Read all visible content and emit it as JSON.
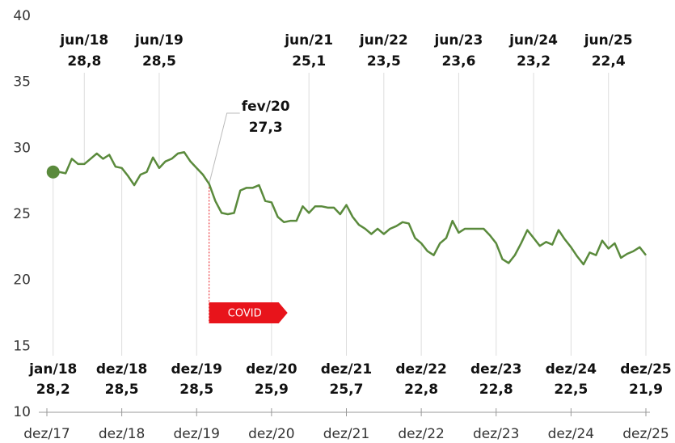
{
  "chart_data": {
    "type": "line",
    "x": [
      1,
      2,
      3,
      4,
      5,
      6,
      7,
      8,
      9,
      10,
      11,
      12,
      13,
      14,
      15,
      16,
      17,
      18,
      19,
      20,
      21,
      22,
      23,
      24,
      25,
      26,
      27,
      28,
      29,
      30,
      31,
      32,
      33,
      34,
      35,
      36,
      37,
      38,
      39,
      40,
      41,
      42,
      43,
      44,
      45,
      46,
      47,
      48,
      49,
      50,
      51,
      52,
      53,
      54,
      55,
      56,
      57,
      58,
      59,
      60,
      61,
      62,
      63,
      64,
      65,
      66,
      67,
      68,
      69,
      70,
      71,
      72,
      73,
      74,
      75,
      76,
      77,
      78,
      79,
      80,
      81,
      82,
      83,
      84,
      85,
      86,
      87,
      88,
      89,
      90,
      91,
      92,
      93,
      94,
      95,
      96
    ],
    "series": [
      {
        "color": "#5a8a3c",
        "values": [
          28.2,
          28.2,
          28.1,
          29.2,
          28.8,
          28.8,
          29.2,
          29.6,
          29.2,
          29.5,
          28.6,
          28.5,
          27.9,
          27.2,
          28.0,
          28.2,
          29.3,
          28.5,
          29.0,
          29.2,
          29.6,
          29.7,
          29.0,
          28.5,
          28.0,
          27.3,
          26.0,
          25.1,
          25.0,
          25.1,
          26.8,
          27.0,
          27.0,
          27.2,
          26.0,
          25.9,
          24.8,
          24.4,
          24.5,
          24.5,
          25.6,
          25.1,
          25.6,
          25.6,
          25.5,
          25.5,
          25.0,
          25.7,
          24.8,
          24.2,
          23.9,
          23.5,
          23.9,
          23.5,
          23.9,
          24.1,
          24.4,
          24.3,
          23.2,
          22.8,
          22.2,
          21.9,
          22.8,
          23.2,
          24.5,
          23.6,
          23.9,
          23.9,
          23.9,
          23.9,
          23.4,
          22.8,
          21.6,
          21.3,
          21.9,
          22.8,
          23.8,
          23.2,
          22.6,
          22.9,
          22.7,
          23.8,
          23.1,
          22.5,
          21.8,
          21.2,
          22.1,
          21.9,
          23.0,
          22.4,
          22.8,
          21.7,
          22.0,
          22.2,
          22.5,
          21.9
        ]
      }
    ],
    "xlim": [
      0,
      96
    ],
    "xticks": [
      {
        "value": 0,
        "label": "dez/17"
      },
      {
        "value": 12,
        "label": "dez/18"
      },
      {
        "value": 24,
        "label": "dez/19"
      },
      {
        "value": 36,
        "label": "dez/20"
      },
      {
        "value": 48,
        "label": "dez/21"
      },
      {
        "value": 60,
        "label": "dez/22"
      },
      {
        "value": 72,
        "label": "dez/23"
      },
      {
        "value": 84,
        "label": "dez/24"
      },
      {
        "value": 96,
        "label": "dez/25"
      }
    ],
    "ylim": [
      10,
      40
    ],
    "yticks": [
      10,
      15,
      20,
      25,
      30,
      35,
      40
    ],
    "grid": false,
    "annotations": [
      {
        "x": 1,
        "label": "jan/18",
        "value": 28.2,
        "value_label": "28,2",
        "position": "bottom"
      },
      {
        "x": 6,
        "label": "jun/18",
        "value": 28.8,
        "value_label": "28,8",
        "position": "top"
      },
      {
        "x": 12,
        "label": "dez/18",
        "value": 28.5,
        "value_label": "28,5",
        "position": "bottom"
      },
      {
        "x": 18,
        "label": "jun/19",
        "value": 28.5,
        "value_label": "28,5",
        "position": "top"
      },
      {
        "x": 24,
        "label": "dez/19",
        "value": 28.5,
        "value_label": "28,5",
        "position": "bottom"
      },
      {
        "x": 26,
        "label": "fev/20",
        "value": 27.3,
        "value_label": "27,3",
        "position": "callout"
      },
      {
        "x": 36,
        "label": "dez/20",
        "value": 25.9,
        "value_label": "25,9",
        "position": "bottom"
      },
      {
        "x": 42,
        "label": "jun/21",
        "value": 25.1,
        "value_label": "25,1",
        "position": "top"
      },
      {
        "x": 48,
        "label": "dez/21",
        "value": 25.7,
        "value_label": "25,7",
        "position": "bottom"
      },
      {
        "x": 54,
        "label": "jun/22",
        "value": 23.5,
        "value_label": "23,5",
        "position": "top"
      },
      {
        "x": 60,
        "label": "dez/22",
        "value": 22.8,
        "value_label": "22,8",
        "position": "bottom"
      },
      {
        "x": 66,
        "label": "jun/23",
        "value": 23.6,
        "value_label": "23,6",
        "position": "top"
      },
      {
        "x": 72,
        "label": "dez/23",
        "value": 22.8,
        "value_label": "22,8",
        "position": "bottom"
      },
      {
        "x": 78,
        "label": "jun/24",
        "value": 23.2,
        "value_label": "23,2",
        "position": "top"
      },
      {
        "x": 84,
        "label": "dez/24",
        "value": 22.5,
        "value_label": "22,5",
        "position": "bottom"
      },
      {
        "x": 90,
        "label": "jun/25",
        "value": 22.4,
        "value_label": "22,4",
        "position": "top"
      },
      {
        "x": 96,
        "label": "dez/25",
        "value": 21.9,
        "value_label": "21,9",
        "position": "bottom"
      }
    ],
    "events": [
      {
        "x": 26,
        "label": "COVID",
        "color": "#e8141b"
      }
    ]
  }
}
